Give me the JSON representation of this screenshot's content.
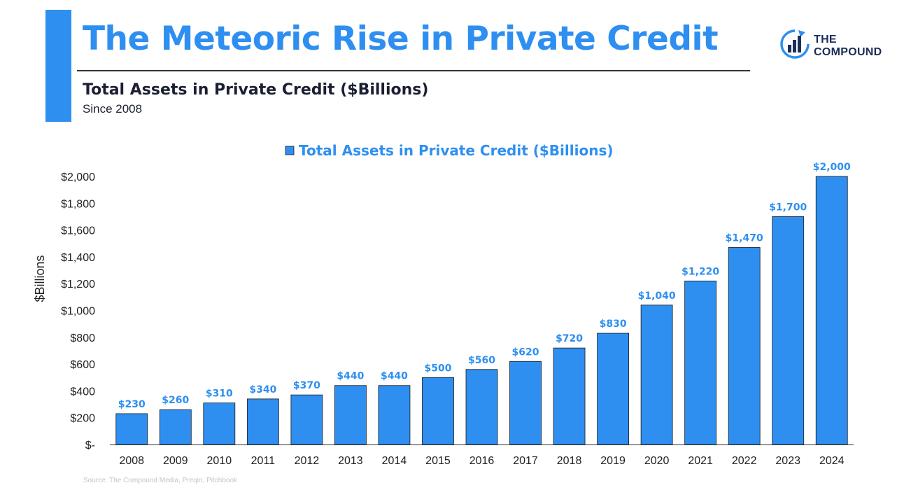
{
  "header": {
    "title": "The Meteoric Rise in Private Credit",
    "subtitle": "Total Assets in Private Credit ($Billions)",
    "since": "Since 2008"
  },
  "logo": {
    "line1": "THE",
    "line2": "COMPOUND",
    "icon": "bar-chart-circle-arrow-icon"
  },
  "colors": {
    "accent": "#2e8ff0",
    "bar": "#2e8ff0",
    "bar_outline": "#1a1a1a",
    "title_dark": "#1a1f33",
    "logo_dark": "#1c2e5a"
  },
  "source": "Source: The Compound Media, Preqin, Pitchbook",
  "chart_data": {
    "type": "bar",
    "legend_label": "Total Assets in Private Credit ($Billions)",
    "legend_position": "top-center",
    "ylabel": "$Billions",
    "xlabel": "",
    "ylim": [
      0,
      2000
    ],
    "yticks": [
      0,
      200,
      400,
      600,
      800,
      1000,
      1200,
      1400,
      1600,
      1800,
      2000
    ],
    "ytick_labels": [
      "$-",
      "$200",
      "$400",
      "$600",
      "$800",
      "$1,000",
      "$1,200",
      "$1,400",
      "$1,600",
      "$1,800",
      "$2,000"
    ],
    "grid": false,
    "categories": [
      "2008",
      "2009",
      "2010",
      "2011",
      "2012",
      "2013",
      "2014",
      "2015",
      "2016",
      "2017",
      "2018",
      "2019",
      "2020",
      "2021",
      "2022",
      "2023",
      "2024"
    ],
    "values": [
      230,
      260,
      310,
      340,
      370,
      440,
      440,
      500,
      560,
      620,
      720,
      830,
      1040,
      1220,
      1470,
      1700,
      2000
    ],
    "data_labels": [
      "$230",
      "$260",
      "$310",
      "$340",
      "$370",
      "$440",
      "$440",
      "$500",
      "$560",
      "$620",
      "$720",
      "$830",
      "$1,040",
      "$1,220",
      "$1,470",
      "$1,700",
      "$2,000"
    ]
  }
}
